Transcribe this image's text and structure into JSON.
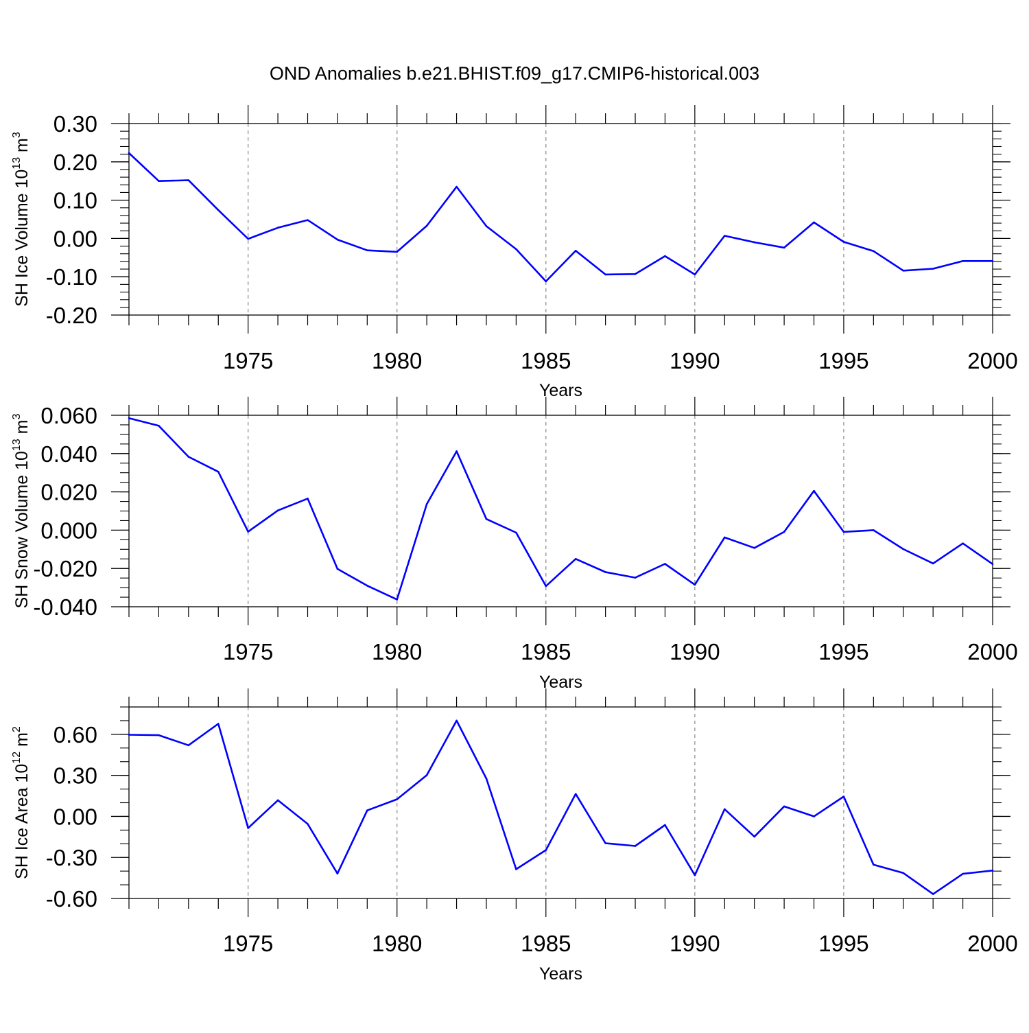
{
  "title": "OND Anomalies b.e21.BHIST.f09_g17.CMIP6-historical.003",
  "colors": {
    "series": "#0000ff",
    "grid": "#888888",
    "axis": "#000000"
  },
  "chart_data": [
    {
      "type": "line",
      "ylabel": {
        "main": "SH Ice Volume 10",
        "exp": "13",
        "unit": " m",
        "unit_exp": "3"
      },
      "xlabel": "Years",
      "xlim": [
        1971,
        2000
      ],
      "ylim": [
        -0.2,
        0.3
      ],
      "xticks": [
        1975,
        1980,
        1985,
        1990,
        1995,
        2000
      ],
      "xtick_labels": [
        "1975",
        "1980",
        "1985",
        "1990",
        "1995",
        "2000"
      ],
      "yticks": [
        -0.2,
        -0.1,
        0.0,
        0.1,
        0.2,
        0.3
      ],
      "ytick_labels": [
        "-0.20",
        "-0.10",
        "0.00",
        "0.10",
        "0.20",
        "0.30"
      ],
      "y_minor_step": 0.02,
      "grid": "dashed vertical at major x ticks",
      "x": [
        1971,
        1972,
        1973,
        1974,
        1975,
        1976,
        1977,
        1978,
        1979,
        1980,
        1981,
        1982,
        1983,
        1984,
        1985,
        1986,
        1987,
        1988,
        1989,
        1990,
        1991,
        1992,
        1993,
        1994,
        1995,
        1996,
        1997,
        1998,
        1999,
        2000
      ],
      "values": [
        0.223,
        0.15,
        0.152,
        0.074,
        -0.001,
        0.028,
        0.048,
        -0.003,
        -0.031,
        -0.035,
        0.033,
        0.135,
        0.032,
        -0.028,
        -0.112,
        -0.032,
        -0.094,
        -0.093,
        -0.046,
        -0.094,
        0.007,
        -0.01,
        -0.024,
        0.042,
        -0.009,
        -0.033,
        -0.084,
        -0.079,
        -0.059,
        -0.059
      ]
    },
    {
      "type": "line",
      "ylabel": {
        "main": "SH Snow Volume 10",
        "exp": "13",
        "unit": " m",
        "unit_exp": "3"
      },
      "xlabel": "Years",
      "xlim": [
        1971,
        2000
      ],
      "ylim": [
        -0.04,
        0.06
      ],
      "xticks": [
        1975,
        1980,
        1985,
        1990,
        1995,
        2000
      ],
      "xtick_labels": [
        "1975",
        "1980",
        "1985",
        "1990",
        "1995",
        "2000"
      ],
      "yticks": [
        -0.04,
        -0.02,
        0.0,
        0.02,
        0.04,
        0.06
      ],
      "ytick_labels": [
        "-0.040",
        "-0.020",
        "0.000",
        "0.020",
        "0.040",
        "0.060"
      ],
      "y_minor_step": 0.005,
      "grid": "dashed vertical at major x ticks",
      "x": [
        1971,
        1972,
        1973,
        1974,
        1975,
        1976,
        1977,
        1978,
        1979,
        1980,
        1981,
        1982,
        1983,
        1984,
        1985,
        1986,
        1987,
        1988,
        1989,
        1990,
        1991,
        1992,
        1993,
        1994,
        1995,
        1996,
        1997,
        1998,
        1999,
        2000
      ],
      "values": [
        0.0585,
        0.0545,
        0.0383,
        0.0305,
        -0.0008,
        0.0103,
        0.0165,
        -0.0202,
        -0.029,
        -0.0362,
        0.0136,
        0.0412,
        0.0058,
        -0.0013,
        -0.0292,
        -0.015,
        -0.0219,
        -0.0248,
        -0.0176,
        -0.0285,
        -0.0038,
        -0.0093,
        -0.0009,
        0.0205,
        -0.0009,
        0.0,
        -0.0099,
        -0.0174,
        -0.0069,
        -0.0177
      ]
    },
    {
      "type": "line",
      "ylabel": {
        "main": "SH Ice Area 10",
        "exp": "12",
        "unit": " m",
        "unit_exp": "2"
      },
      "xlabel": "Years",
      "xlim": [
        1971,
        2000
      ],
      "ylim": [
        -0.6,
        0.8
      ],
      "xticks": [
        1975,
        1980,
        1985,
        1990,
        1995,
        2000
      ],
      "xtick_labels": [
        "1975",
        "1980",
        "1985",
        "1990",
        "1995",
        "2000"
      ],
      "yticks": [
        -0.6,
        -0.3,
        0.0,
        0.3,
        0.6
      ],
      "ytick_labels": [
        "-0.60",
        "-0.30",
        "0.00",
        "0.30",
        "0.60"
      ],
      "y_minor_step": 0.1,
      "grid": "dashed vertical at major x ticks",
      "x": [
        1971,
        1972,
        1973,
        1974,
        1975,
        1976,
        1977,
        1978,
        1979,
        1980,
        1981,
        1982,
        1983,
        1984,
        1985,
        1986,
        1987,
        1988,
        1989,
        1990,
        1991,
        1992,
        1993,
        1994,
        1995,
        1996,
        1997,
        1998,
        1999,
        2000
      ],
      "values": [
        0.597,
        0.594,
        0.52,
        0.677,
        -0.085,
        0.118,
        -0.055,
        -0.418,
        0.044,
        0.125,
        0.301,
        0.7,
        0.276,
        -0.386,
        -0.246,
        0.164,
        -0.196,
        -0.216,
        -0.063,
        -0.43,
        0.053,
        -0.148,
        0.073,
        0.0,
        0.145,
        -0.353,
        -0.414,
        -0.568,
        -0.42,
        -0.396
      ]
    }
  ]
}
